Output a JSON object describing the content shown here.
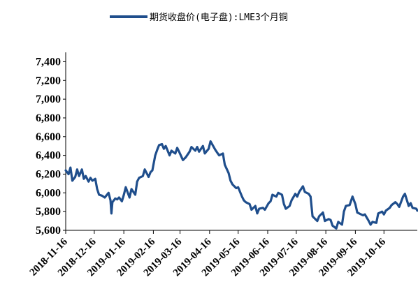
{
  "chart_data": {
    "type": "line",
    "title": "",
    "xlabel": "",
    "ylabel": "",
    "ylim": [
      5600,
      7500
    ],
    "grid": false,
    "legend_position": "top",
    "y_ticks": [
      "5,600",
      "5,800",
      "6,000",
      "6,200",
      "6,400",
      "6,600",
      "6,800",
      "7,000",
      "7,200",
      "7,400"
    ],
    "x_ticks": [
      "2018-11-16",
      "2018-12-16",
      "2019-01-16",
      "2019-02-16",
      "2019-03-16",
      "2019-04-16",
      "2019-05-16",
      "2019-06-16",
      "2019-07-16",
      "2019-08-16",
      "2019-09-16",
      "2019-10-16"
    ],
    "x_domain": [
      "2018-11-16",
      "2019-11-20"
    ],
    "series": [
      {
        "name": "期货收盘价(电子盘):LME3个月铜",
        "color": "#1f4e8c",
        "points": [
          [
            "2018-11-16",
            6240
          ],
          [
            "2018-11-19",
            6200
          ],
          [
            "2018-11-21",
            6270
          ],
          [
            "2018-11-23",
            6130
          ],
          [
            "2018-11-26",
            6170
          ],
          [
            "2018-11-28",
            6250
          ],
          [
            "2018-11-30",
            6180
          ],
          [
            "2018-12-03",
            6250
          ],
          [
            "2018-12-05",
            6150
          ],
          [
            "2018-12-07",
            6180
          ],
          [
            "2018-12-10",
            6120
          ],
          [
            "2018-12-12",
            6160
          ],
          [
            "2018-12-14",
            6130
          ],
          [
            "2018-12-17",
            6150
          ],
          [
            "2018-12-19",
            6040
          ],
          [
            "2018-12-21",
            5980
          ],
          [
            "2018-12-24",
            5970
          ],
          [
            "2018-12-27",
            5950
          ],
          [
            "2018-12-31",
            6000
          ],
          [
            "2019-01-02",
            5920
          ],
          [
            "2019-01-03",
            5780
          ],
          [
            "2019-01-04",
            5900
          ],
          [
            "2019-01-07",
            5940
          ],
          [
            "2019-01-09",
            5930
          ],
          [
            "2019-01-11",
            5950
          ],
          [
            "2019-01-14",
            5910
          ],
          [
            "2019-01-16",
            5980
          ],
          [
            "2019-01-18",
            6060
          ],
          [
            "2019-01-22",
            5950
          ],
          [
            "2019-01-24",
            6040
          ],
          [
            "2019-01-28",
            5980
          ],
          [
            "2019-01-30",
            6120
          ],
          [
            "2019-02-01",
            6160
          ],
          [
            "2019-02-05",
            6180
          ],
          [
            "2019-02-07",
            6250
          ],
          [
            "2019-02-11",
            6170
          ],
          [
            "2019-02-13",
            6220
          ],
          [
            "2019-02-15",
            6240
          ],
          [
            "2019-02-18",
            6400
          ],
          [
            "2019-02-20",
            6460
          ],
          [
            "2019-02-22",
            6510
          ],
          [
            "2019-02-25",
            6520
          ],
          [
            "2019-02-27",
            6470
          ],
          [
            "2019-03-01",
            6500
          ],
          [
            "2019-03-05",
            6400
          ],
          [
            "2019-03-07",
            6450
          ],
          [
            "2019-03-11",
            6420
          ],
          [
            "2019-03-13",
            6480
          ],
          [
            "2019-03-15",
            6440
          ],
          [
            "2019-03-19",
            6350
          ],
          [
            "2019-03-22",
            6380
          ],
          [
            "2019-03-26",
            6440
          ],
          [
            "2019-03-28",
            6490
          ],
          [
            "2019-04-01",
            6450
          ],
          [
            "2019-04-03",
            6490
          ],
          [
            "2019-04-05",
            6440
          ],
          [
            "2019-04-09",
            6500
          ],
          [
            "2019-04-11",
            6420
          ],
          [
            "2019-04-15",
            6470
          ],
          [
            "2019-04-17",
            6550
          ],
          [
            "2019-04-22",
            6460
          ],
          [
            "2019-04-24",
            6430
          ],
          [
            "2019-04-26",
            6400
          ],
          [
            "2019-04-30",
            6420
          ],
          [
            "2019-05-02",
            6300
          ],
          [
            "2019-05-06",
            6210
          ],
          [
            "2019-05-08",
            6130
          ],
          [
            "2019-05-10",
            6090
          ],
          [
            "2019-05-14",
            6050
          ],
          [
            "2019-05-16",
            6060
          ],
          [
            "2019-05-20",
            5960
          ],
          [
            "2019-05-22",
            5920
          ],
          [
            "2019-05-24",
            5900
          ],
          [
            "2019-05-28",
            5880
          ],
          [
            "2019-05-30",
            5820
          ],
          [
            "2019-06-03",
            5860
          ],
          [
            "2019-06-05",
            5780
          ],
          [
            "2019-06-07",
            5830
          ],
          [
            "2019-06-11",
            5840
          ],
          [
            "2019-06-13",
            5820
          ],
          [
            "2019-06-17",
            5890
          ],
          [
            "2019-06-19",
            5910
          ],
          [
            "2019-06-21",
            5980
          ],
          [
            "2019-06-25",
            5960
          ],
          [
            "2019-06-27",
            6000
          ],
          [
            "2019-07-01",
            5980
          ],
          [
            "2019-07-03",
            5880
          ],
          [
            "2019-07-05",
            5830
          ],
          [
            "2019-07-09",
            5860
          ],
          [
            "2019-07-11",
            5920
          ],
          [
            "2019-07-15",
            5990
          ],
          [
            "2019-07-17",
            5960
          ],
          [
            "2019-07-19",
            6010
          ],
          [
            "2019-07-23",
            6070
          ],
          [
            "2019-07-25",
            6010
          ],
          [
            "2019-07-29",
            5990
          ],
          [
            "2019-07-31",
            5960
          ],
          [
            "2019-08-02",
            5750
          ],
          [
            "2019-08-05",
            5720
          ],
          [
            "2019-08-07",
            5700
          ],
          [
            "2019-08-09",
            5750
          ],
          [
            "2019-08-13",
            5790
          ],
          [
            "2019-08-15",
            5700
          ],
          [
            "2019-08-19",
            5720
          ],
          [
            "2019-08-21",
            5710
          ],
          [
            "2019-08-23",
            5650
          ],
          [
            "2019-08-27",
            5620
          ],
          [
            "2019-08-29",
            5690
          ],
          [
            "2019-09-02",
            5660
          ],
          [
            "2019-09-04",
            5800
          ],
          [
            "2019-09-06",
            5860
          ],
          [
            "2019-09-10",
            5870
          ],
          [
            "2019-09-13",
            5960
          ],
          [
            "2019-09-16",
            5880
          ],
          [
            "2019-09-18",
            5790
          ],
          [
            "2019-09-20",
            5780
          ],
          [
            "2019-09-24",
            5760
          ],
          [
            "2019-09-26",
            5770
          ],
          [
            "2019-09-30",
            5700
          ],
          [
            "2019-10-02",
            5660
          ],
          [
            "2019-10-04",
            5690
          ],
          [
            "2019-10-08",
            5680
          ],
          [
            "2019-10-10",
            5780
          ],
          [
            "2019-10-14",
            5800
          ],
          [
            "2019-10-16",
            5770
          ],
          [
            "2019-10-18",
            5810
          ],
          [
            "2019-10-22",
            5840
          ],
          [
            "2019-10-24",
            5870
          ],
          [
            "2019-10-28",
            5900
          ],
          [
            "2019-10-30",
            5880
          ],
          [
            "2019-11-01",
            5850
          ],
          [
            "2019-11-05",
            5960
          ],
          [
            "2019-11-07",
            5990
          ],
          [
            "2019-11-11",
            5860
          ],
          [
            "2019-11-13",
            5890
          ],
          [
            "2019-11-15",
            5840
          ],
          [
            "2019-11-19",
            5830
          ],
          [
            "2019-11-20",
            5810
          ]
        ]
      }
    ]
  }
}
